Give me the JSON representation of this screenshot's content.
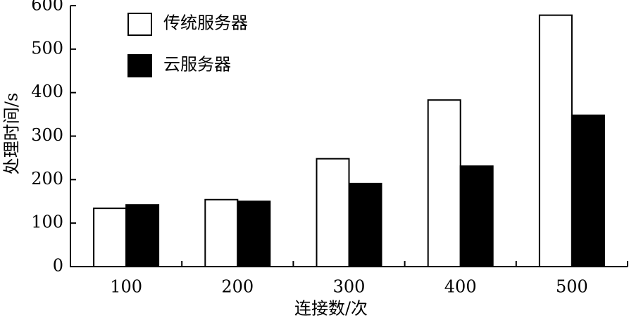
{
  "chart_data": {
    "type": "bar",
    "xlabel": "连接数/次",
    "ylabel": "处理时间/s",
    "categories": [
      "100",
      "200",
      "300",
      "400",
      "500"
    ],
    "series": [
      {
        "name": "传统服务器",
        "color": "#ffffff",
        "values": [
          134,
          154,
          248,
          383,
          578
        ]
      },
      {
        "name": "云服务器",
        "color": "#000000",
        "values": [
          142,
          150,
          191,
          231,
          348
        ]
      }
    ],
    "ylim": [
      0,
      600
    ],
    "yticks": [
      0,
      100,
      200,
      300,
      400,
      500,
      600
    ],
    "legend": "upper-left"
  }
}
